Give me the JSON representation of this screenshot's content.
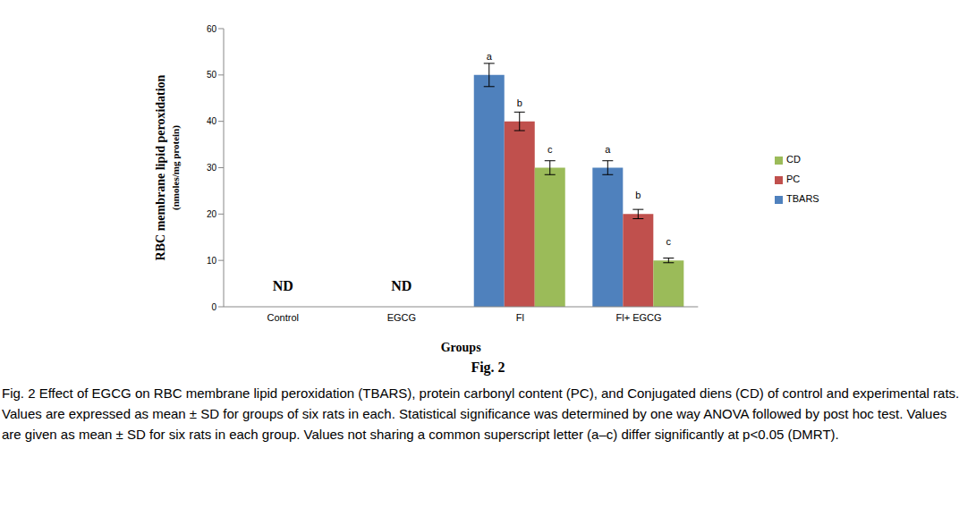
{
  "chart_data": {
    "type": "bar",
    "categories": [
      "Control",
      "EGCG",
      "Fl",
      "Fl+ EGCG"
    ],
    "series": [
      {
        "name": "TBARS",
        "color": "#4f81bd",
        "values": [
          null,
          null,
          50,
          30
        ],
        "errors": [
          null,
          null,
          2.5,
          1.5
        ],
        "letters": [
          null,
          null,
          "a",
          "a"
        ]
      },
      {
        "name": "PC",
        "color": "#c0504d",
        "values": [
          null,
          null,
          40,
          20
        ],
        "errors": [
          null,
          null,
          2,
          1
        ],
        "letters": [
          null,
          null,
          "b",
          "b"
        ]
      },
      {
        "name": "CD",
        "color": "#9bbb59",
        "values": [
          null,
          null,
          30,
          10
        ],
        "errors": [
          null,
          null,
          1.5,
          0.5
        ],
        "letters": [
          null,
          null,
          "c",
          "c"
        ]
      }
    ],
    "ylim": [
      0,
      60
    ],
    "yticks": [
      0,
      10,
      20,
      30,
      40,
      50,
      60
    ],
    "y_label": [
      "RBC membrane lipid peroxidation",
      "(nmoles/mg protein)"
    ],
    "x_label": "Groups",
    "annotations": [
      {
        "category": "Control",
        "text": "ND"
      },
      {
        "category": "EGCG",
        "text": "ND"
      }
    ],
    "legend": "right",
    "grid": false,
    "figure_label": "Fig. 2",
    "caption": "Fig. 2 Effect of EGCG on RBC membrane lipid peroxidation (TBARS), protein carbonyl content (PC), and Conjugated diens (CD) of control and experimental rats. Values are expressed as mean ± SD for groups of six rats in each. Statistical significance was determined by one way ANOVA followed by post hoc test. Values are given as mean ± SD for six rats in each group. Values not sharing a common superscript letter (a–c) differ significantly at p<0.05 (DMRT)."
  }
}
